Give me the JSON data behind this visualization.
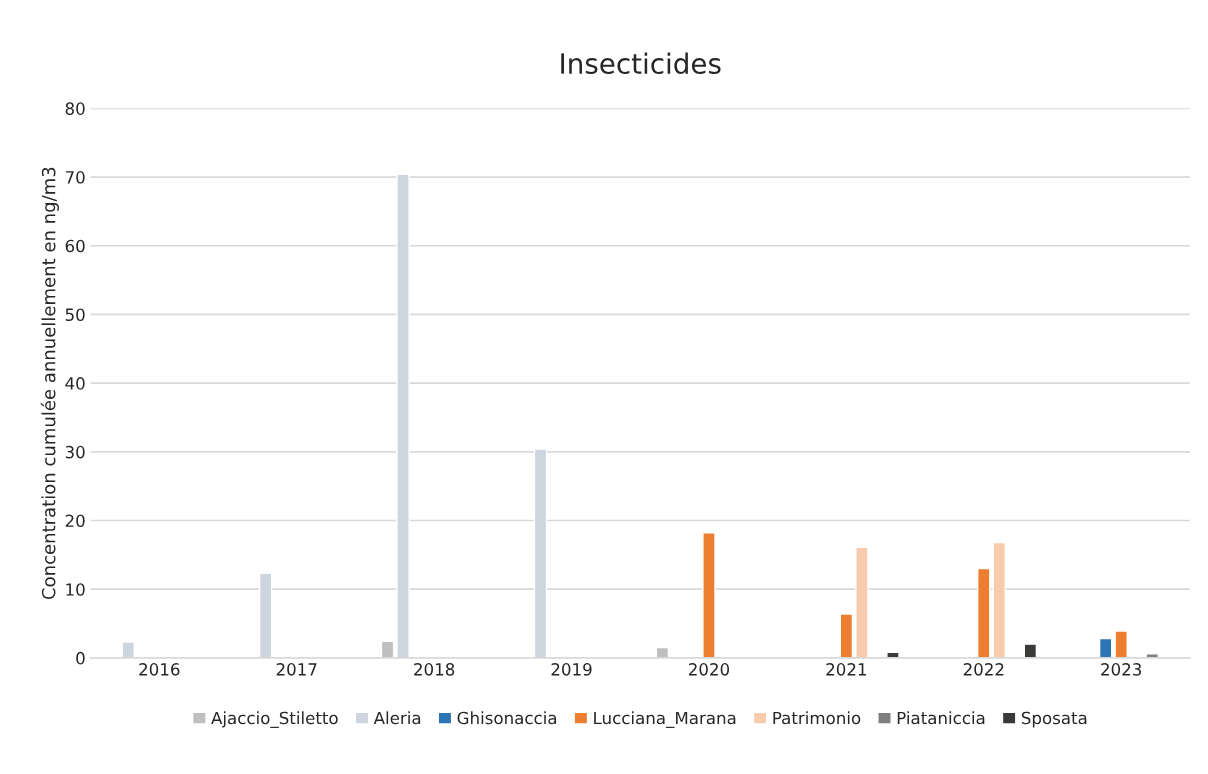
{
  "chart_data": {
    "type": "bar",
    "title": "Insecticides",
    "ylabel": "Concentration cumulée annuellement en ng/m3",
    "categories": [
      "2016",
      "2017",
      "2018",
      "2019",
      "2020",
      "2021",
      "2022",
      "2023"
    ],
    "series": [
      {
        "name": "Ajaccio_Stiletto",
        "color": "#bfbfbf",
        "values": [
          null,
          null,
          2.4,
          0.2,
          1.5,
          null,
          null,
          null
        ]
      },
      {
        "name": "Aleria",
        "color": "#cdd5df",
        "values": [
          2.3,
          12.3,
          70.4,
          30.4,
          null,
          null,
          null,
          null
        ]
      },
      {
        "name": "Ghisonaccia",
        "color": "#2e75b6",
        "values": [
          null,
          null,
          null,
          null,
          null,
          null,
          null,
          2.8
        ]
      },
      {
        "name": "Lucciana_Marana",
        "color": "#ed7d31",
        "values": [
          null,
          null,
          null,
          null,
          18.2,
          6.4,
          13.0,
          3.9
        ]
      },
      {
        "name": "Patrimonio",
        "color": "#f8cbad",
        "values": [
          null,
          null,
          null,
          null,
          null,
          16.1,
          16.8,
          null
        ]
      },
      {
        "name": "Piataniccia",
        "color": "#7f7f7f",
        "values": [
          null,
          null,
          null,
          null,
          null,
          null,
          null,
          0.6
        ]
      },
      {
        "name": "Sposata",
        "color": "#3a3a38",
        "values": [
          null,
          null,
          null,
          null,
          null,
          0.8,
          2.0,
          null
        ]
      }
    ],
    "ylim": [
      0,
      80
    ],
    "yticks": [
      0,
      10,
      20,
      30,
      40,
      50,
      60,
      70,
      80
    ],
    "grid": "y",
    "legend": "bottom"
  }
}
